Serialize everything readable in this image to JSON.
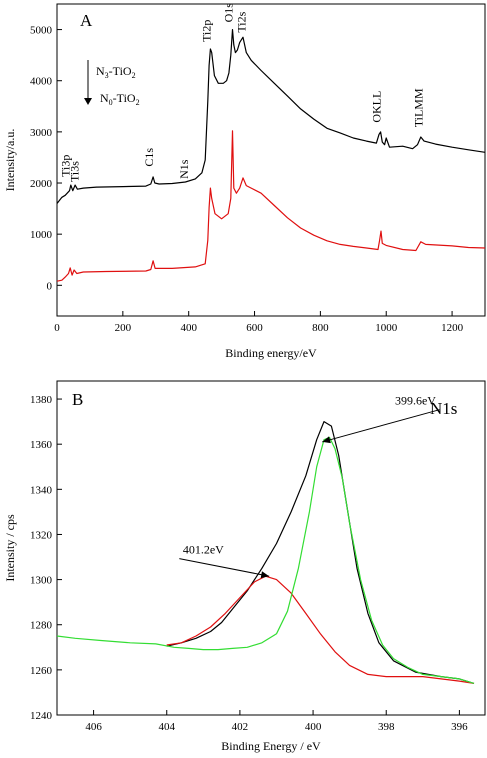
{
  "chart_data": [
    {
      "type": "line",
      "panel_label": "A",
      "xlabel": "Binding energy/eV",
      "ylabel": "Intensity/a.u.",
      "xlim": [
        0,
        1300
      ],
      "ylim": [
        -600,
        5500
      ],
      "xticks": [
        0,
        200,
        400,
        600,
        800,
        1000,
        1200
      ],
      "yticks": [
        0,
        1000,
        2000,
        3000,
        4000,
        5000
      ],
      "legend": {
        "position": "top-left",
        "line1": {
          "pre": "N",
          "sub": "3",
          "post": "-TiO",
          "sub2": "2"
        },
        "line2": {
          "pre": "N",
          "sub": "0",
          "post": "-TiO",
          "sub2": "2"
        }
      },
      "series": [
        {
          "color": "#000000",
          "points": [
            [
              0,
              1600
            ],
            [
              15,
              1720
            ],
            [
              25,
              1760
            ],
            [
              38,
              1850
            ],
            [
              42,
              1960
            ],
            [
              48,
              1850
            ],
            [
              55,
              1960
            ],
            [
              62,
              1880
            ],
            [
              80,
              1900
            ],
            [
              120,
              1920
            ],
            [
              200,
              1930
            ],
            [
              270,
              1940
            ],
            [
              285,
              1980
            ],
            [
              292,
              2120
            ],
            [
              297,
              2000
            ],
            [
              310,
              1980
            ],
            [
              350,
              1990
            ],
            [
              390,
              2020
            ],
            [
              420,
              2080
            ],
            [
              440,
              2200
            ],
            [
              450,
              2450
            ],
            [
              458,
              3600
            ],
            [
              462,
              4300
            ],
            [
              466,
              4620
            ],
            [
              470,
              4550
            ],
            [
              478,
              4100
            ],
            [
              490,
              3950
            ],
            [
              505,
              3950
            ],
            [
              515,
              4000
            ],
            [
              522,
              4150
            ],
            [
              528,
              4500
            ],
            [
              533,
              5000
            ],
            [
              537,
              4700
            ],
            [
              542,
              4550
            ],
            [
              548,
              4600
            ],
            [
              555,
              4750
            ],
            [
              565,
              4850
            ],
            [
              575,
              4550
            ],
            [
              590,
              4400
            ],
            [
              620,
              4200
            ],
            [
              660,
              3950
            ],
            [
              700,
              3700
            ],
            [
              740,
              3450
            ],
            [
              780,
              3250
            ],
            [
              820,
              3070
            ],
            [
              860,
              2980
            ],
            [
              900,
              2880
            ],
            [
              940,
              2820
            ],
            [
              970,
              2780
            ],
            [
              978,
              2950
            ],
            [
              983,
              3000
            ],
            [
              988,
              2800
            ],
            [
              995,
              2750
            ],
            [
              1000,
              2880
            ],
            [
              1010,
              2700
            ],
            [
              1050,
              2720
            ],
            [
              1080,
              2670
            ],
            [
              1095,
              2750
            ],
            [
              1105,
              2900
            ],
            [
              1115,
              2820
            ],
            [
              1150,
              2760
            ],
            [
              1200,
              2700
            ],
            [
              1250,
              2650
            ],
            [
              1300,
              2600
            ]
          ]
        },
        {
          "color": "#e01010",
          "points": [
            [
              0,
              80
            ],
            [
              15,
              100
            ],
            [
              25,
              160
            ],
            [
              35,
              230
            ],
            [
              40,
              340
            ],
            [
              46,
              200
            ],
            [
              52,
              300
            ],
            [
              60,
              230
            ],
            [
              80,
              260
            ],
            [
              150,
              270
            ],
            [
              270,
              280
            ],
            [
              285,
              310
            ],
            [
              292,
              480
            ],
            [
              298,
              330
            ],
            [
              350,
              330
            ],
            [
              420,
              360
            ],
            [
              450,
              420
            ],
            [
              458,
              880
            ],
            [
              462,
              1520
            ],
            [
              466,
              1900
            ],
            [
              470,
              1700
            ],
            [
              480,
              1400
            ],
            [
              500,
              1300
            ],
            [
              520,
              1400
            ],
            [
              528,
              1700
            ],
            [
              533,
              3020
            ],
            [
              537,
              1900
            ],
            [
              545,
              1800
            ],
            [
              555,
              1900
            ],
            [
              565,
              2100
            ],
            [
              575,
              1950
            ],
            [
              590,
              1900
            ],
            [
              620,
              1800
            ],
            [
              660,
              1560
            ],
            [
              700,
              1320
            ],
            [
              740,
              1120
            ],
            [
              780,
              980
            ],
            [
              820,
              870
            ],
            [
              860,
              800
            ],
            [
              900,
              760
            ],
            [
              940,
              730
            ],
            [
              975,
              700
            ],
            [
              980,
              880
            ],
            [
              984,
              1060
            ],
            [
              988,
              820
            ],
            [
              1000,
              780
            ],
            [
              1050,
              700
            ],
            [
              1090,
              680
            ],
            [
              1105,
              850
            ],
            [
              1120,
              800
            ],
            [
              1200,
              770
            ],
            [
              1250,
              740
            ],
            [
              1300,
              730
            ]
          ]
        }
      ],
      "annotations": [
        {
          "text": "Ti3p",
          "x": 38,
          "y": 2120
        },
        {
          "text": "Ti3s",
          "x": 66,
          "y": 2020
        },
        {
          "text": "C1s",
          "x": 292,
          "y": 2320
        },
        {
          "text": "N1s",
          "x": 398,
          "y": 2080
        },
        {
          "text": "Ti2p",
          "x": 466,
          "y": 4760
        },
        {
          "text": "O1s",
          "x": 533,
          "y": 5140
        },
        {
          "text": "Ti2s",
          "x": 572,
          "y": 4940
        },
        {
          "text": "OKLL",
          "x": 983,
          "y": 3180
        },
        {
          "text": "TiLMM",
          "x": 1110,
          "y": 3090
        }
      ]
    },
    {
      "type": "line",
      "panel_label": "B",
      "title_label": "N1s",
      "xlabel": "Binding Energy / eV",
      "ylabel": "Intensity / cps",
      "xlim": [
        407,
        395.3
      ],
      "ylim": [
        1240,
        1388
      ],
      "xticks": [
        406,
        404,
        402,
        400,
        398,
        396
      ],
      "yticks": [
        1240,
        1260,
        1280,
        1300,
        1320,
        1340,
        1360,
        1380
      ],
      "series": [
        {
          "color": "#000000",
          "points": [
            [
              404,
              1270.5
            ],
            [
              403.6,
              1272
            ],
            [
              403.2,
              1274
            ],
            [
              402.8,
              1277
            ],
            [
              402.5,
              1281
            ],
            [
              402.2,
              1287
            ],
            [
              401.8,
              1295
            ],
            [
              401.4,
              1305
            ],
            [
              401,
              1316
            ],
            [
              400.6,
              1330
            ],
            [
              400.2,
              1346
            ],
            [
              399.9,
              1362
            ],
            [
              399.7,
              1370
            ],
            [
              399.5,
              1368
            ],
            [
              399.3,
              1355
            ],
            [
              399.1,
              1335
            ],
            [
              398.8,
              1305
            ],
            [
              398.5,
              1285
            ],
            [
              398.2,
              1272
            ],
            [
              397.8,
              1264
            ],
            [
              397.2,
              1259
            ],
            [
              396.5,
              1257
            ],
            [
              396,
              1256
            ],
            [
              395.6,
              1254
            ]
          ]
        },
        {
          "color": "#e01010",
          "points": [
            [
              404,
              1271
            ],
            [
              403.6,
              1272
            ],
            [
              403.2,
              1275
            ],
            [
              402.8,
              1279
            ],
            [
              402.4,
              1285
            ],
            [
              402,
              1292
            ],
            [
              401.6,
              1299
            ],
            [
              401.3,
              1301.5
            ],
            [
              401,
              1300
            ],
            [
              400.6,
              1294
            ],
            [
              400.2,
              1285
            ],
            [
              399.8,
              1276
            ],
            [
              399.4,
              1268
            ],
            [
              399,
              1262
            ],
            [
              398.5,
              1258
            ],
            [
              398,
              1257
            ],
            [
              397.5,
              1257
            ],
            [
              397,
              1257
            ],
            [
              396.5,
              1256
            ],
            [
              396,
              1255
            ],
            [
              395.6,
              1254
            ]
          ]
        },
        {
          "color": "#33dd33",
          "points": [
            [
              407,
              1275
            ],
            [
              406.5,
              1274
            ],
            [
              405.8,
              1273
            ],
            [
              405,
              1272
            ],
            [
              404.3,
              1271.5
            ],
            [
              403.8,
              1270
            ],
            [
              403.4,
              1269.5
            ],
            [
              403,
              1269
            ],
            [
              402.6,
              1269
            ],
            [
              402.2,
              1269.5
            ],
            [
              401.8,
              1270
            ],
            [
              401.4,
              1272
            ],
            [
              401,
              1276
            ],
            [
              400.7,
              1286
            ],
            [
              400.4,
              1305
            ],
            [
              400.1,
              1330
            ],
            [
              399.9,
              1350
            ],
            [
              399.7,
              1362
            ],
            [
              399.55,
              1363
            ],
            [
              399.4,
              1358
            ],
            [
              399.2,
              1345
            ],
            [
              399,
              1325
            ],
            [
              398.7,
              1300
            ],
            [
              398.4,
              1282
            ],
            [
              398.1,
              1271
            ],
            [
              397.8,
              1265
            ],
            [
              397.4,
              1261
            ],
            [
              397,
              1258
            ],
            [
              396.5,
              1257
            ],
            [
              396,
              1256
            ],
            [
              395.6,
              1254
            ]
          ]
        }
      ],
      "annotations": [
        {
          "text": "399.6eV",
          "x": 397.2,
          "y": 1377.5,
          "arrow_to": [
            399.75,
            1361
          ]
        },
        {
          "text": "401.2eV",
          "x": 403.0,
          "y": 1311.5,
          "arrow_to": [
            401.2,
            1301.5
          ]
        }
      ]
    }
  ]
}
